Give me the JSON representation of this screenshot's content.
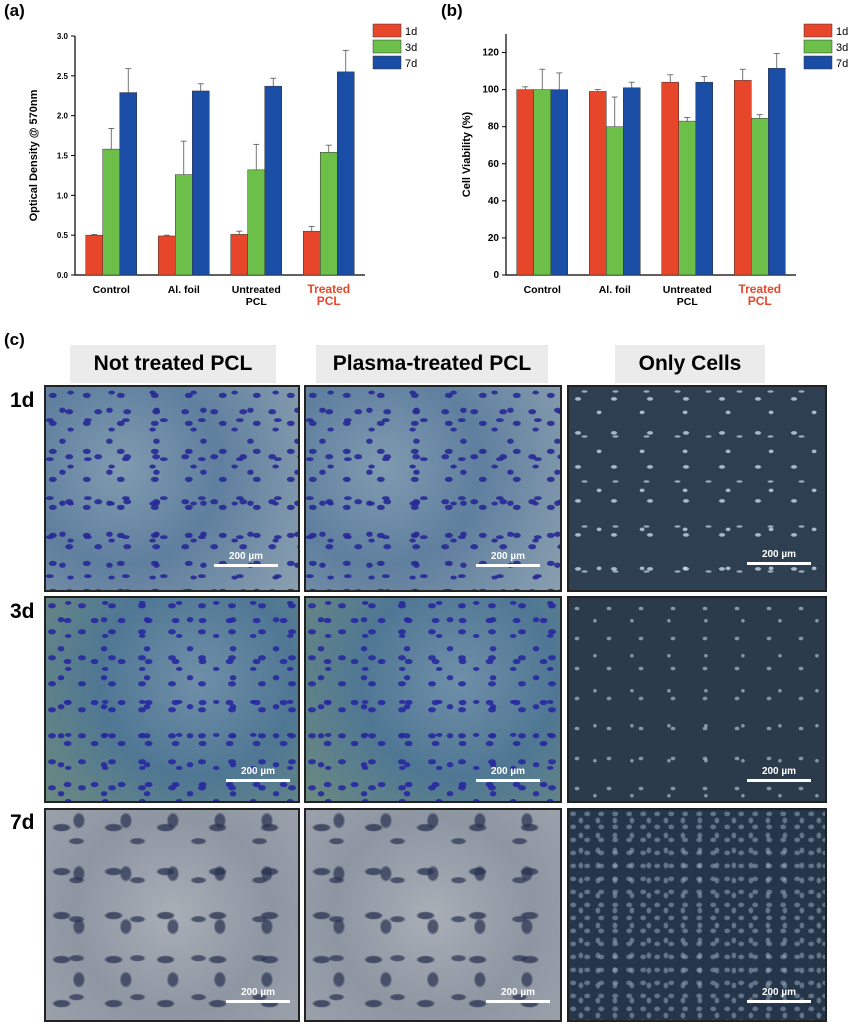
{
  "panel_a": {
    "label": "(a)",
    "chart_data": {
      "type": "bar",
      "categories": [
        "Control",
        "Al. foil",
        "Untreated PCL",
        "Treated PCL"
      ],
      "category_lines": [
        [
          "Control"
        ],
        [
          "Al. foil"
        ],
        [
          "Untreated",
          "PCL"
        ],
        [
          "Treated",
          "PCL"
        ]
      ],
      "highlight_category": "Treated PCL",
      "series": [
        {
          "name": "1d",
          "values": [
            0.5,
            0.49,
            0.51,
            0.55
          ],
          "errors": [
            0.01,
            0.01,
            0.04,
            0.06
          ]
        },
        {
          "name": "3d",
          "values": [
            1.58,
            1.26,
            1.32,
            1.54
          ],
          "errors": [
            0.26,
            0.42,
            0.32,
            0.09
          ]
        },
        {
          "name": "7d",
          "values": [
            2.29,
            2.31,
            2.37,
            2.55
          ],
          "errors": [
            0.3,
            0.09,
            0.1,
            0.27
          ]
        }
      ],
      "ylabel": "Optical Density @ 570nm",
      "xlabel": "",
      "ylim": [
        0,
        3.0
      ],
      "yticks": [
        "0.0",
        "0.5",
        "1.0",
        "1.5",
        "2.0",
        "2.5",
        "3.0"
      ],
      "legend": "top-right"
    }
  },
  "panel_b": {
    "label": "(b)",
    "chart_data": {
      "type": "bar",
      "categories": [
        "Control",
        "Al. foil",
        "Untreated PCL",
        "Treated PCL"
      ],
      "category_lines": [
        [
          "Control"
        ],
        [
          "Al. foil"
        ],
        [
          "Untreated",
          "PCL"
        ],
        [
          "Treated",
          "PCL"
        ]
      ],
      "highlight_category": "Treated PCL",
      "series": [
        {
          "name": "1d",
          "values": [
            100,
            99,
            104,
            105
          ],
          "errors": [
            1.5,
            1.0,
            4,
            6
          ]
        },
        {
          "name": "3d",
          "values": [
            100,
            80,
            83,
            84.5
          ],
          "errors": [
            11,
            16,
            2,
            2
          ]
        },
        {
          "name": "7d",
          "values": [
            100,
            101,
            104,
            111.5
          ],
          "errors": [
            9,
            3,
            3,
            8
          ]
        }
      ],
      "ylabel": "Cell Viability (%)",
      "xlabel": "",
      "ylim": [
        0,
        130
      ],
      "yticks": [
        "0",
        "20",
        "40",
        "60",
        "80",
        "100",
        "120"
      ],
      "legend": "top-right"
    }
  },
  "colors": {
    "1d": "#e8462a",
    "3d": "#6cc04a",
    "7d": "#1a4da6",
    "highlight": "#e8462a"
  },
  "panel_c": {
    "label": "(c)",
    "columns": [
      "Not treated PCL",
      "Plasma-treated PCL",
      "Only Cells"
    ],
    "rows": [
      "1d",
      "3d",
      "7d"
    ],
    "scale_bar": "200 µm"
  }
}
